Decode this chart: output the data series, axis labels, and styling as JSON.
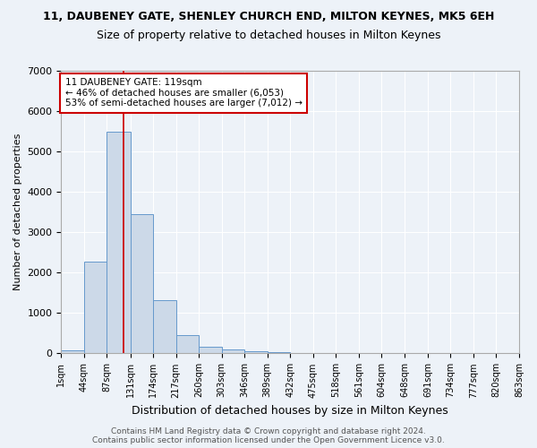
{
  "title": "11, DAUBENEY GATE, SHENLEY CHURCH END, MILTON KEYNES, MK5 6EH",
  "subtitle": "Size of property relative to detached houses in Milton Keynes",
  "xlabel": "Distribution of detached houses by size in Milton Keynes",
  "ylabel": "Number of detached properties",
  "bar_color": "#ccd9e8",
  "bar_edge_color": "#6699cc",
  "annotation_text": "11 DAUBENEY GATE: 119sqm\n← 46% of detached houses are smaller (6,053)\n53% of semi-detached houses are larger (7,012) →",
  "vline_x": 119,
  "vline_color": "#cc0000",
  "footer1": "Contains HM Land Registry data © Crown copyright and database right 2024.",
  "footer2": "Contains public sector information licensed under the Open Government Licence v3.0.",
  "bin_edges": [
    1,
    44,
    87,
    131,
    174,
    217,
    260,
    303,
    346,
    389,
    432,
    475,
    518,
    561,
    604,
    648,
    691,
    734,
    777,
    820,
    863
  ],
  "bin_counts": [
    80,
    2280,
    5480,
    3450,
    1310,
    460,
    160,
    90,
    65,
    40,
    0,
    0,
    0,
    0,
    0,
    0,
    0,
    0,
    0,
    0
  ],
  "ylim": [
    0,
    7000
  ],
  "yticks": [
    0,
    1000,
    2000,
    3000,
    4000,
    5000,
    6000,
    7000
  ],
  "background_color": "#edf2f8",
  "plot_bg_color": "#edf2f8",
  "grid_color": "#ffffff",
  "title_fontsize": 9,
  "subtitle_fontsize": 9,
  "annotation_fontsize": 7.5,
  "ylabel_fontsize": 8,
  "xlabel_fontsize": 9,
  "footer_fontsize": 6.5,
  "xtick_fontsize": 7,
  "ytick_fontsize": 8
}
